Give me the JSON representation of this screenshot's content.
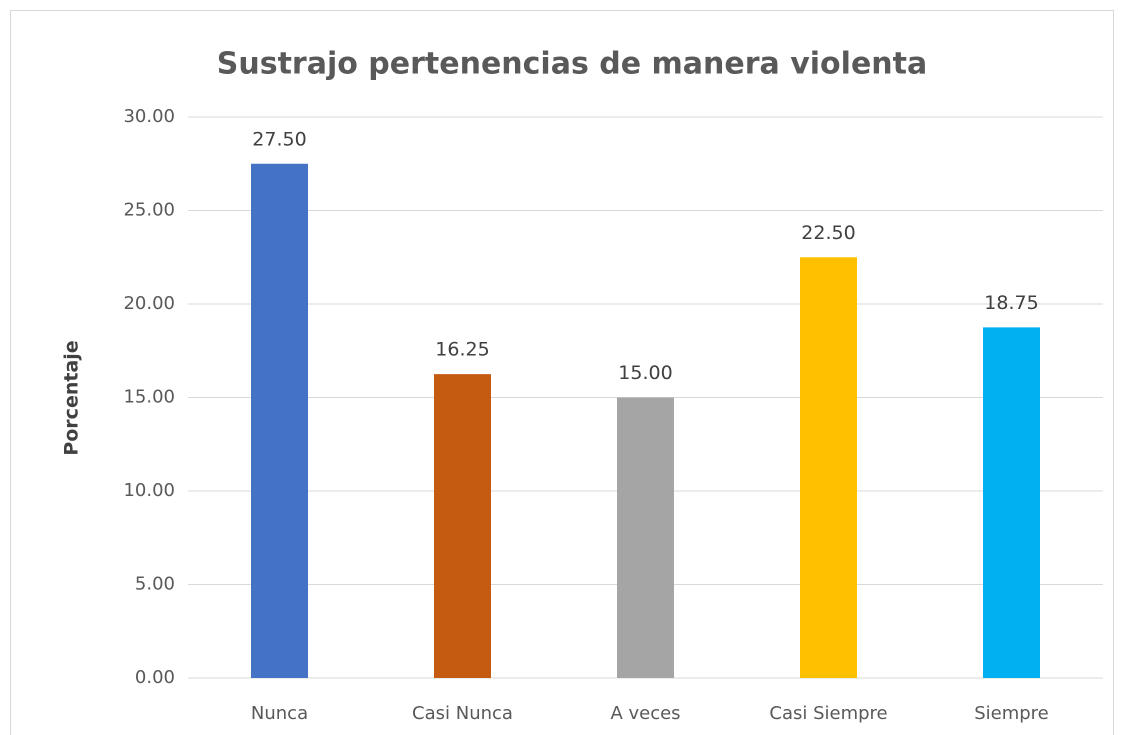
{
  "chart_data": {
    "type": "bar",
    "title": "Sustrajo pertenencias de manera violenta",
    "y_label": "Porcentaje",
    "categories": [
      "Nunca",
      "Casi Nunca",
      "A veces",
      "Casi Siempre",
      "Siempre"
    ],
    "values": [
      27.5,
      16.25,
      15,
      22.5,
      18.75
    ],
    "value_labels": [
      "27.50",
      "16.25",
      "15.00",
      "22.50",
      "18.75"
    ],
    "colors": [
      "#4472c4",
      "#c55a11",
      "#a5a5a5",
      "#ffc000",
      "#00b0f0"
    ],
    "ylim": [
      0,
      30
    ],
    "yticks": [
      {
        "value": 0,
        "label": "0.00"
      },
      {
        "value": 5,
        "label": "5.00"
      },
      {
        "value": 10,
        "label": "10.00"
      },
      {
        "value": 15,
        "label": "15.00"
      },
      {
        "value": 20,
        "label": "20.00"
      },
      {
        "value": 25,
        "label": "25.00"
      },
      {
        "value": 30,
        "label": "30.00"
      }
    ],
    "grid": true
  }
}
